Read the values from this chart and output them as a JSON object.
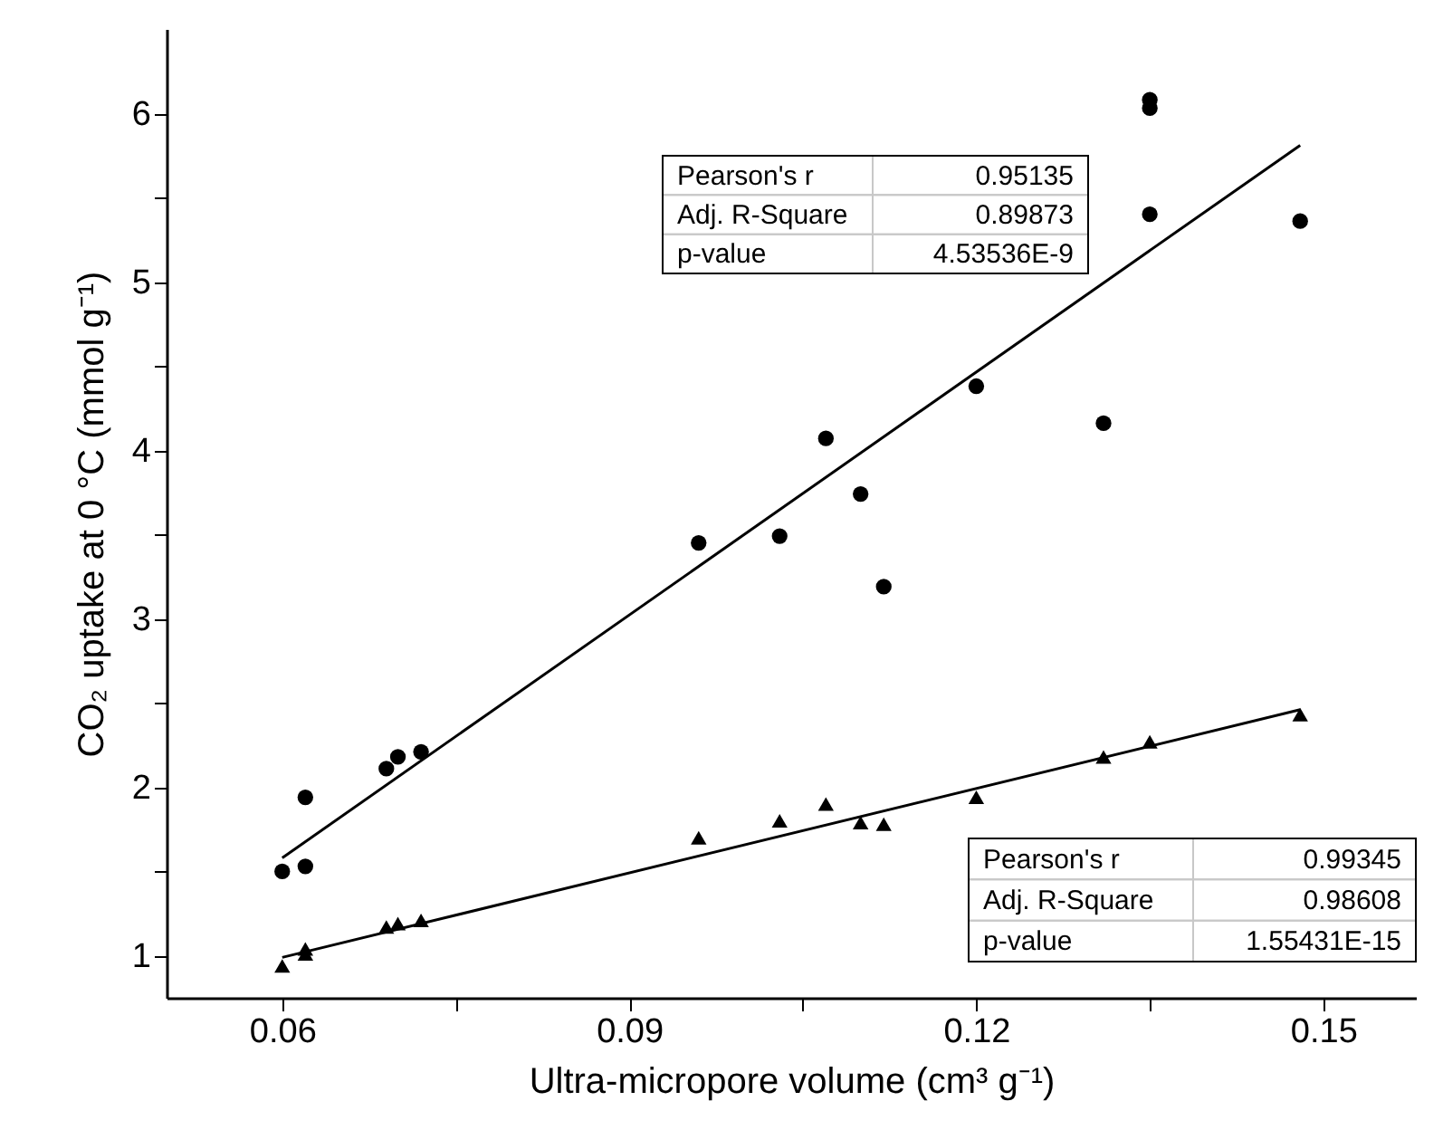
{
  "chart_data": {
    "type": "scatter",
    "xlabel": "Ultra-micropore volume (cm³ g⁻¹)",
    "ylabel": "CO₂ uptake at 0 °C (mmol g⁻¹)",
    "xlim": [
      0.05,
      0.158
    ],
    "ylim": [
      0.75,
      6.5
    ],
    "xticks": [
      0.06,
      {
        "value": 0.075,
        "label": null
      },
      0.09,
      {
        "value": 0.105,
        "label": null
      },
      0.12,
      {
        "value": 0.135,
        "label": null
      },
      0.15
    ],
    "yticks": [
      1,
      {
        "value": 1.5,
        "label": null
      },
      2,
      {
        "value": 2.5,
        "label": null
      },
      3,
      {
        "value": 3.5,
        "label": null
      },
      4,
      {
        "value": 4.5,
        "label": null
      },
      5,
      {
        "value": 5.5,
        "label": null
      },
      6
    ],
    "grid": false,
    "series": [
      {
        "marker": "circle",
        "color": "#000000",
        "x": [
          0.06,
          0.062,
          0.062,
          0.069,
          0.07,
          0.072,
          0.096,
          0.103,
          0.107,
          0.11,
          0.112,
          0.12,
          0.131,
          0.135,
          0.135,
          0.135,
          0.148
        ],
        "values": [
          1.5,
          1.53,
          1.94,
          2.11,
          2.18,
          2.21,
          3.45,
          3.49,
          4.07,
          3.74,
          3.19,
          4.38,
          4.16,
          6.08,
          6.03,
          5.4,
          5.36
        ]
      },
      {
        "marker": "triangle",
        "color": "#000000",
        "x": [
          0.06,
          0.062,
          0.062,
          0.069,
          0.07,
          0.072,
          0.096,
          0.103,
          0.107,
          0.11,
          0.112,
          0.12,
          0.131,
          0.135,
          0.148
        ],
        "values": [
          0.94,
          1.01,
          1.04,
          1.17,
          1.19,
          1.21,
          1.7,
          1.8,
          1.9,
          1.79,
          1.78,
          1.94,
          2.18,
          2.27,
          2.43
        ]
      },
      {
        "type": "line",
        "line_style": "solid",
        "color": "#000000",
        "x": [
          0.06,
          0.148
        ],
        "values": [
          1.58,
          5.81
        ]
      },
      {
        "type": "line",
        "line_style": "solid",
        "color": "#000000",
        "x": [
          0.06,
          0.148
        ],
        "values": [
          0.99,
          2.46
        ]
      }
    ],
    "annotations": [
      "Pearson's r",
      "0.95135",
      "Adj. R-Square",
      "0.89873",
      "p-value",
      "4.53536E-9",
      "Pearson's r",
      "0.99345",
      "Adj. R-Square",
      "0.98608",
      "p-value",
      "1.55431E-15"
    ]
  }
}
